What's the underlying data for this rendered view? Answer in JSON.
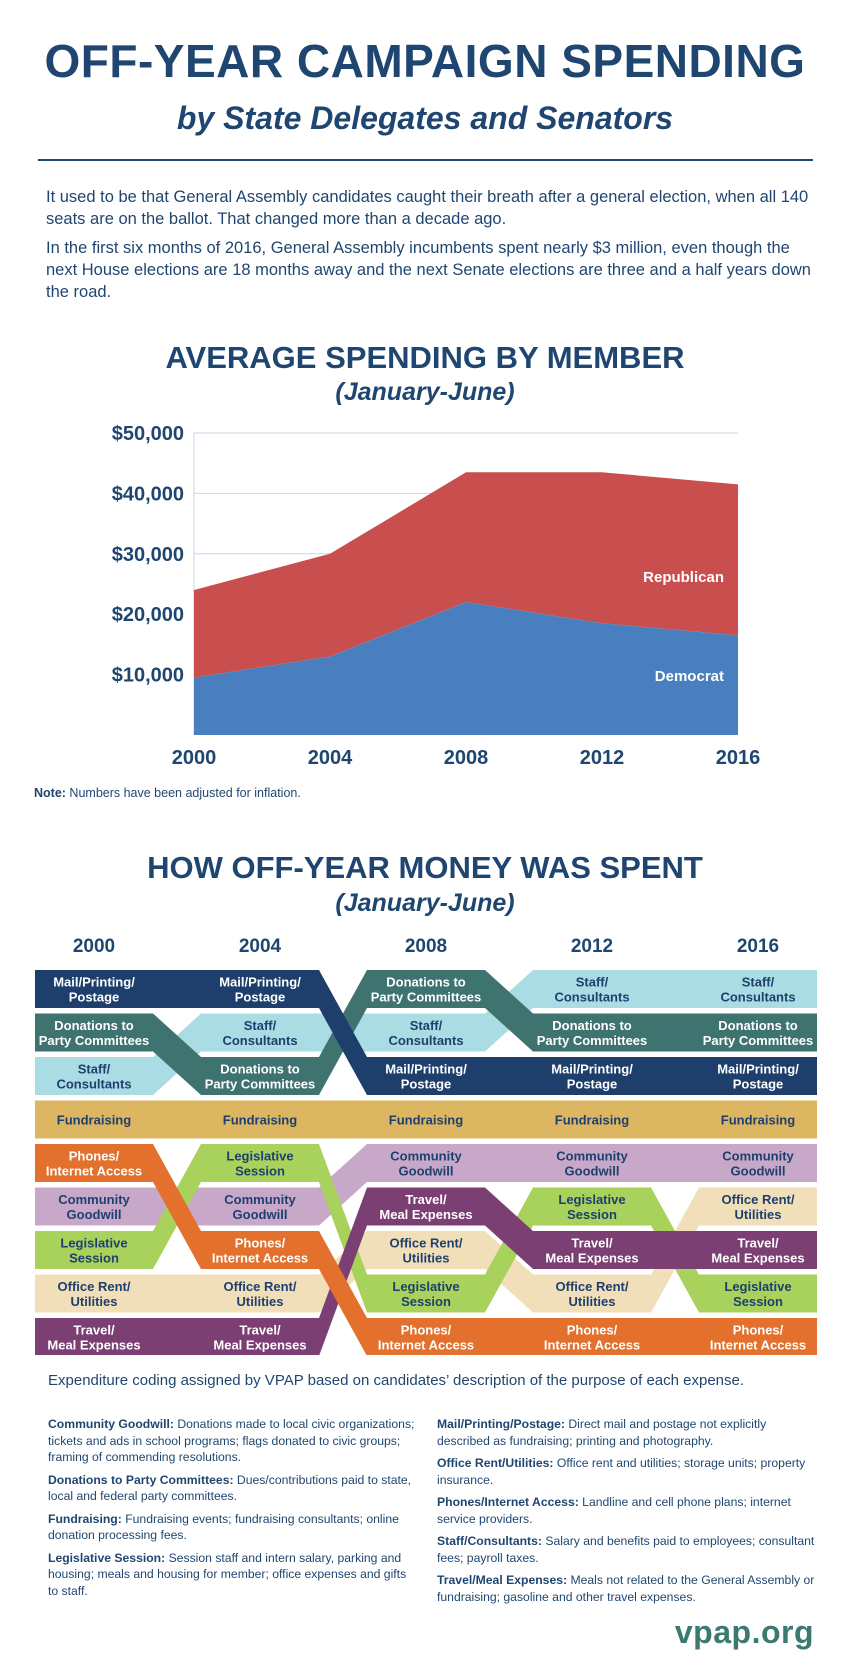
{
  "header": {
    "title": "OFF-YEAR CAMPAIGN SPENDING",
    "subtitle": "by State Delegates and Senators"
  },
  "intro": {
    "p1": "It used to be that General Assembly candidates caught their breath after a general election, when all 140 seats are on the ballot. That changed more than a decade ago.",
    "p2": "In the first six months of 2016, General Assembly incumbents spent nearly $3 million, even though the next House elections are 18 months away and the next Senate elections are three and a half years down the road."
  },
  "chart1": {
    "title": "AVERAGE SPENDING BY MEMBER",
    "subtitle": "(January-June)"
  },
  "note": {
    "label": "Note:",
    "text": " Numbers have been adjusted for inflation."
  },
  "chart2": {
    "title": "HOW OFF-YEAR MONEY WAS SPENT",
    "subtitle": "(January-June)"
  },
  "caption": "Expenditure coding assigned by VPAP based on candidates’ description of the purpose of each expense.",
  "glossary": {
    "left": [
      {
        "term": "Community Goodwill:",
        "def": " Donations made to local civic organizations; tickets and ads in school programs; flags donated to civic groups; framing of commending resolutions."
      },
      {
        "term": "Donations to Party Committees:",
        "def": " Dues/contributions paid to state, local and federal party committees."
      },
      {
        "term": "Fundraising:",
        "def": " Fundraising events; fundraising consultants; online donation processing fees."
      },
      {
        "term": "Legislative Session:",
        "def": " Session staff and intern salary, parking and housing; meals and housing for member; office expenses and gifts to staff."
      }
    ],
    "right": [
      {
        "term": "Mail/Printing/Postage:",
        "def": " Direct mail and postage not explicitly described as fundraising; printing and photography."
      },
      {
        "term": "Office Rent/Utilities:",
        "def": " Office rent and utilities; storage units; property insurance."
      },
      {
        "term": "Phones/Internet Access:",
        "def": " Landline and cell phone plans; internet service providers."
      },
      {
        "term": "Staff/Consultants:",
        "def": " Salary and benefits paid to employees; consultant fees; payroll taxes."
      },
      {
        "term": "Travel/Meal Expenses:",
        "def": " Meals not related to the General Assembly or fundraising; gasoline and other travel expenses."
      }
    ]
  },
  "logo": "vpap.org",
  "colors": {
    "republican": "#c94f4f",
    "democrat": "#4a7fbf",
    "grid": "#c8d6e8",
    "title": "#1f4670"
  },
  "chart_data": [
    {
      "type": "area",
      "stacked": true,
      "x": [
        2000,
        2004,
        2008,
        2012,
        2016
      ],
      "xticks": [
        "2000",
        "2004",
        "2008",
        "2012",
        "2016"
      ],
      "yticks": [
        "$10,000",
        "$20,000",
        "$30,000",
        "$40,000",
        "$50,000"
      ],
      "ylim": [
        0,
        50000
      ],
      "series": [
        {
          "name": "Democrat",
          "values": [
            9500,
            13000,
            22000,
            18500,
            16500
          ],
          "color": "#4a7fbf"
        },
        {
          "name": "Republican",
          "values": [
            14500,
            17000,
            21500,
            25000,
            25000
          ],
          "color": "#c94f4f"
        }
      ],
      "title": "AVERAGE SPENDING BY MEMBER",
      "xlabel": "",
      "ylabel": ""
    },
    {
      "type": "bump",
      "years": [
        "2000",
        "2004",
        "2008",
        "2012",
        "2016"
      ],
      "categories": [
        {
          "key": "mail",
          "name": "Mail/Printing/Postage",
          "lines": [
            "Mail/Printing/",
            "Postage"
          ],
          "color": "#1e3f6c",
          "text": "#ffffff",
          "ranks": [
            1,
            1,
            3,
            3,
            3
          ]
        },
        {
          "key": "donations",
          "name": "Donations to Party Committees",
          "lines": [
            "Donations to",
            "Party Committees"
          ],
          "color": "#3f7370",
          "text": "#ffffff",
          "ranks": [
            2,
            3,
            1,
            2,
            2
          ]
        },
        {
          "key": "staff",
          "name": "Staff/Consultants",
          "lines": [
            "Staff/",
            "Consultants"
          ],
          "color": "#a9dce3",
          "text": "#1f3f6e",
          "ranks": [
            3,
            2,
            2,
            1,
            1
          ]
        },
        {
          "key": "fundraising",
          "name": "Fundraising",
          "lines": [
            "Fundraising"
          ],
          "color": "#dcb661",
          "text": "#1f3f6e",
          "ranks": [
            4,
            4,
            4,
            4,
            4
          ]
        },
        {
          "key": "phones",
          "name": "Phones/Internet Access",
          "lines": [
            "Phones/",
            "Internet Access"
          ],
          "color": "#e3712d",
          "text": "#ffffff",
          "ranks": [
            5,
            7,
            9,
            9,
            9
          ]
        },
        {
          "key": "community",
          "name": "Community Goodwill",
          "lines": [
            "Community",
            "Goodwill"
          ],
          "color": "#c8a8c8",
          "text": "#1f3f6e",
          "ranks": [
            6,
            6,
            5,
            5,
            5
          ]
        },
        {
          "key": "legislative",
          "name": "Legislative Session",
          "lines": [
            "Legislative",
            "Session"
          ],
          "color": "#a8d25c",
          "text": "#1f3f6e",
          "ranks": [
            7,
            5,
            8,
            6,
            8
          ]
        },
        {
          "key": "office",
          "name": "Office Rent/Utilities",
          "lines": [
            "Office Rent/",
            "Utilities"
          ],
          "color": "#f0dfb9",
          "text": "#1f3f6e",
          "ranks": [
            8,
            8,
            7,
            8,
            6
          ]
        },
        {
          "key": "travel",
          "name": "Travel/Meal Expenses",
          "lines": [
            "Travel/",
            "Meal Expenses"
          ],
          "color": "#7b3f74",
          "text": "#ffffff",
          "ranks": [
            9,
            9,
            6,
            7,
            7
          ]
        }
      ],
      "title": "HOW OFF-YEAR MONEY WAS SPENT"
    }
  ]
}
